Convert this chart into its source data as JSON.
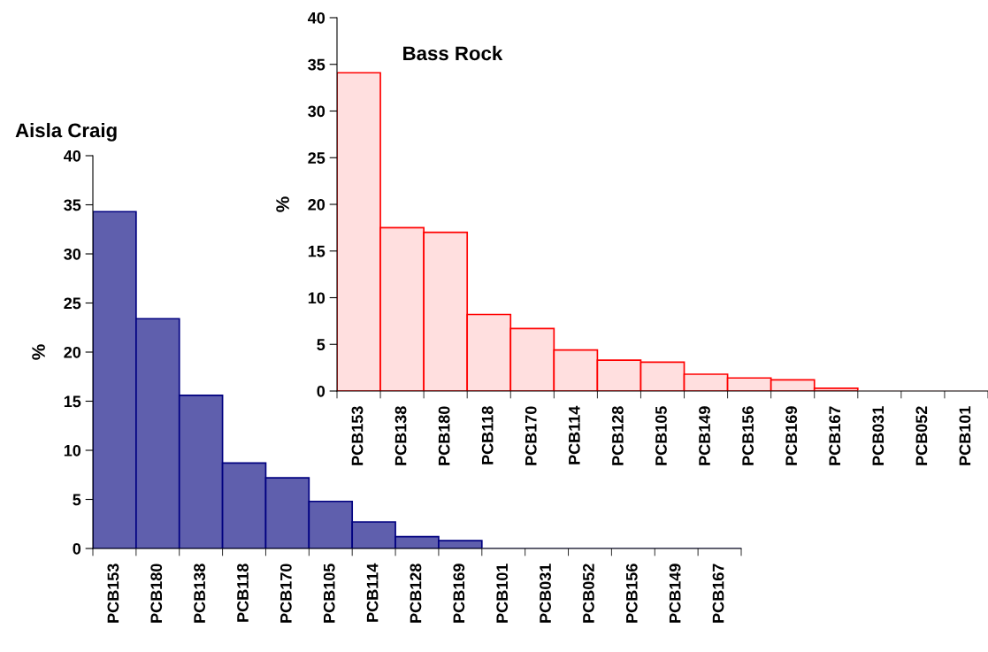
{
  "chart_data": [
    {
      "type": "bar",
      "title": "Aisla Craig",
      "ylabel": "%",
      "categories": [
        "PCB153",
        "PCB180",
        "PCB138",
        "PCB118",
        "PCB170",
        "PCB105",
        "PCB114",
        "PCB128",
        "PCB169",
        "PCB101",
        "PCB031",
        "PCB052",
        "PCB156",
        "PCB149",
        "PCB167"
      ],
      "values": [
        34.3,
        23.4,
        15.6,
        8.7,
        7.2,
        4.8,
        2.7,
        1.2,
        0.8,
        0,
        0,
        0,
        0,
        0,
        0
      ],
      "color": "#5f5fad",
      "ylim": [
        0,
        40
      ],
      "yticks": [
        0,
        5,
        10,
        15,
        20,
        25,
        30,
        35,
        40
      ],
      "grid": false
    },
    {
      "type": "bar",
      "title": "Bass Rock",
      "ylabel": "%",
      "categories": [
        "PCB153",
        "PCB138",
        "PCB180",
        "PCB118",
        "PCB170",
        "PCB114",
        "PCB128",
        "PCB105",
        "PCB149",
        "PCB156",
        "PCB169",
        "PCB167",
        "PCB031",
        "PCB052",
        "PCB101"
      ],
      "values": [
        34.1,
        17.5,
        17.0,
        8.2,
        6.7,
        4.4,
        3.3,
        3.1,
        1.8,
        1.4,
        1.2,
        0.3,
        0,
        0,
        0
      ],
      "color": "#ffdfdf",
      "ylim": [
        0,
        40
      ],
      "yticks": [
        0,
        5,
        10,
        15,
        20,
        25,
        30,
        35,
        40
      ],
      "grid": false
    }
  ]
}
